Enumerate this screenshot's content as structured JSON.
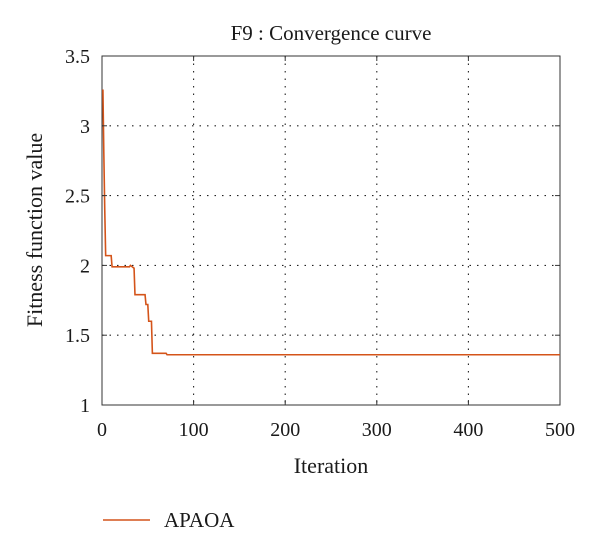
{
  "chart_data": {
    "type": "line",
    "title": "F9 : Convergence curve",
    "xlabel": "Iteration",
    "ylabel": "Fitness function value",
    "xlim": [
      0,
      500
    ],
    "ylim": [
      1,
      3.5
    ],
    "x_ticks": [
      "0",
      "100",
      "200",
      "300",
      "400",
      "500"
    ],
    "y_ticks": [
      "1",
      "1.5",
      "2",
      "2.5",
      "3",
      "3.5"
    ],
    "grid": true,
    "legend_position": "bottom-left",
    "series": [
      {
        "name": "APAOA",
        "color": "#d4541a",
        "x": [
          1,
          2,
          3,
          4,
          10,
          11,
          30,
          31,
          35,
          36,
          47,
          48,
          50,
          51,
          54,
          55,
          70,
          71,
          500
        ],
        "y": [
          3.26,
          2.8,
          2.4,
          2.07,
          2.07,
          1.99,
          1.99,
          2.0,
          1.98,
          1.79,
          1.79,
          1.72,
          1.72,
          1.6,
          1.6,
          1.37,
          1.37,
          1.36,
          1.36
        ]
      }
    ]
  }
}
